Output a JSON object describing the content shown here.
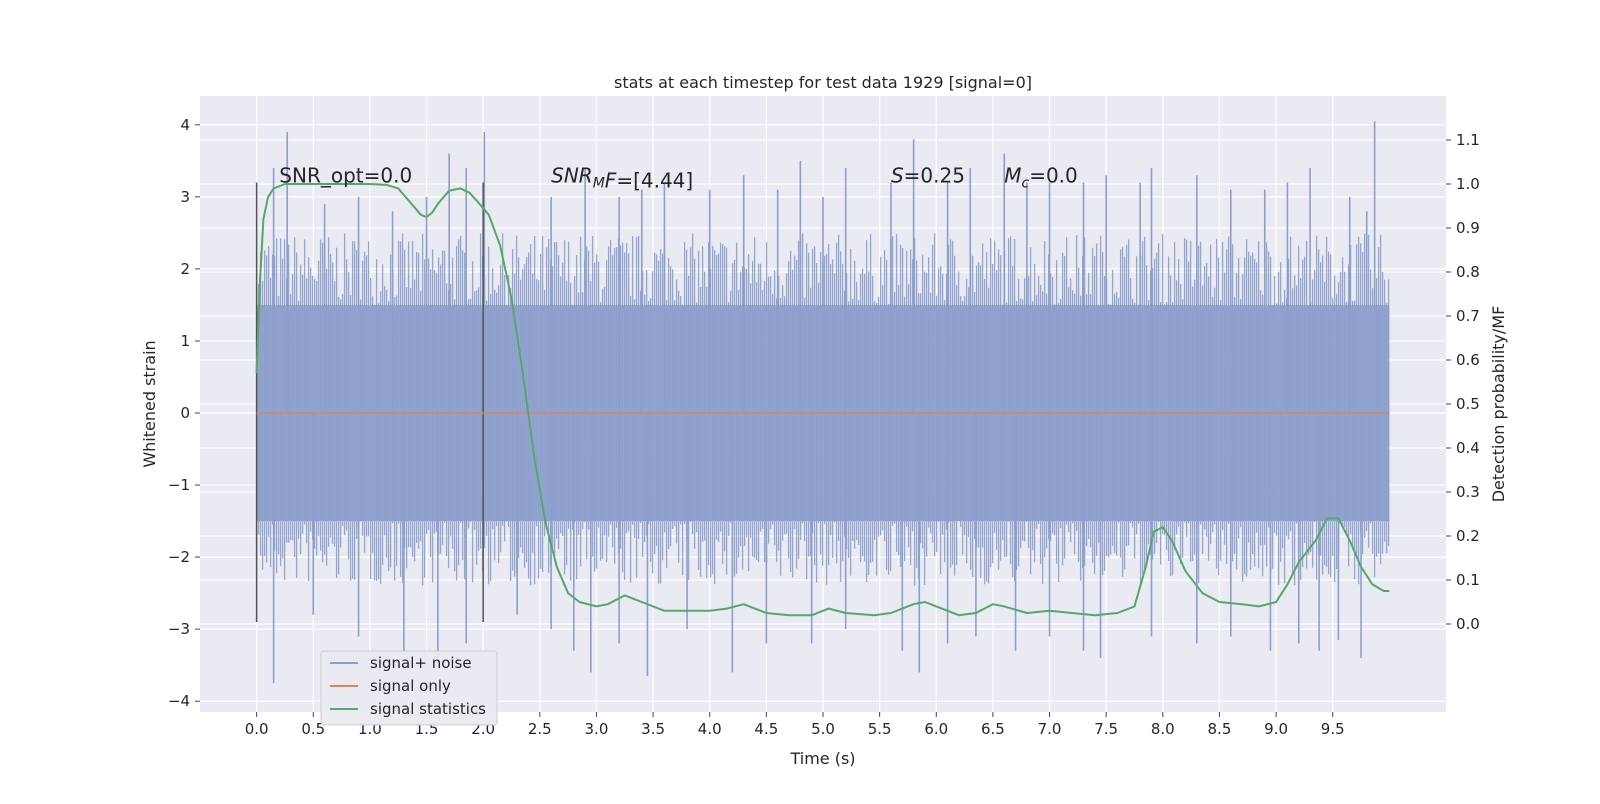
{
  "chart_data": {
    "type": "line",
    "title": "stats at each timestep for test data 1929 [signal=0]",
    "xlabel": "Time (s)",
    "ylabel_left": "Whitened strain",
    "ylabel_right": "Detection probability/MF",
    "xlim": [
      -0.5,
      10.5
    ],
    "ylim_left": [
      -4.15,
      4.4
    ],
    "ylim_right": [
      -0.2,
      1.2
    ],
    "x_ticks": [
      0.0,
      0.5,
      1.0,
      1.5,
      2.0,
      2.5,
      3.0,
      3.5,
      4.0,
      4.5,
      5.0,
      5.5,
      6.0,
      6.5,
      7.0,
      7.5,
      8.0,
      8.5,
      9.0,
      9.5
    ],
    "x_tick_labels": [
      "0.0",
      "0.5",
      "1.0",
      "1.5",
      "2.0",
      "2.5",
      "3.0",
      "3.5",
      "4.0",
      "4.5",
      "5.0",
      "5.5",
      "6.0",
      "6.5",
      "7.0",
      "7.5",
      "8.0",
      "8.5",
      "9.0",
      "9.5"
    ],
    "y_left_ticks": [
      4,
      3,
      2,
      1,
      0,
      -1,
      -2,
      -3,
      -4
    ],
    "y_left_tick_labels": [
      "4",
      "3",
      "2",
      "1",
      "0",
      "−1",
      "−2",
      "−3",
      "−4"
    ],
    "y_right_ticks": [
      1.1,
      1.0,
      0.9,
      0.8,
      0.7,
      0.6,
      0.5,
      0.4,
      0.3,
      0.2,
      0.1,
      0.0
    ],
    "y_right_tick_labels": [
      "1.1",
      "1.0",
      "0.9",
      "0.8",
      "0.7",
      "0.6",
      "0.5",
      "0.4",
      "0.3",
      "0.2",
      "0.1",
      "0.0"
    ],
    "grid": true,
    "legend_position": "lower-left",
    "annotations": [
      {
        "text": "SNR_opt=0.0",
        "x": 0.2,
        "y": 3.2
      },
      {
        "text": "SNR",
        "sub": "M",
        "rest": "F=[4.44]",
        "x": 2.6,
        "y": 3.2
      },
      {
        "text": "S",
        "rest": "=0.25",
        "x": 5.6,
        "y": 3.2
      },
      {
        "text": "M",
        "sub": "c",
        "rest": "=0.0",
        "x": 6.6,
        "y": 3.2
      }
    ],
    "vertical_lines": [
      {
        "x": 0.0,
        "y_range": [
          -2.9,
          3.2
        ]
      },
      {
        "x": 2.0,
        "y_range": [
          -2.9,
          3.2
        ]
      }
    ],
    "series": [
      {
        "name": "signal+ noise",
        "axis": "left",
        "color": "#8c9fcc",
        "x_range": [
          0.0,
          10.0
        ],
        "core_envelope": [
          -1.5,
          1.5
        ],
        "spikes": [
          [
            0.15,
            3.4
          ],
          [
            0.27,
            3.9
          ],
          [
            0.6,
            2.9
          ],
          [
            0.9,
            3.0
          ],
          [
            1.2,
            2.8
          ],
          [
            1.5,
            3.0
          ],
          [
            1.7,
            3.6
          ],
          [
            1.85,
            3.4
          ],
          [
            2.01,
            3.9
          ],
          [
            2.6,
            3.0
          ],
          [
            2.9,
            3.4
          ],
          [
            3.2,
            3.0
          ],
          [
            3.4,
            3.1
          ],
          [
            3.6,
            3.2
          ],
          [
            4.0,
            3.1
          ],
          [
            4.3,
            3.3
          ],
          [
            4.6,
            3.1
          ],
          [
            4.8,
            3.5
          ],
          [
            5.0,
            3.0
          ],
          [
            5.2,
            3.4
          ],
          [
            5.6,
            3.2
          ],
          [
            5.8,
            3.8
          ],
          [
            6.1,
            3.2
          ],
          [
            6.3,
            3.4
          ],
          [
            6.6,
            3.6
          ],
          [
            6.8,
            3.2
          ],
          [
            7.0,
            3.2
          ],
          [
            7.3,
            3.2
          ],
          [
            7.5,
            3.3
          ],
          [
            7.8,
            3.2
          ],
          [
            7.9,
            3.4
          ],
          [
            8.3,
            3.3
          ],
          [
            8.6,
            3.1
          ],
          [
            8.9,
            3.1
          ],
          [
            9.1,
            3.2
          ],
          [
            9.3,
            3.4
          ],
          [
            9.65,
            3.0
          ],
          [
            9.8,
            2.8
          ],
          [
            9.87,
            4.05
          ],
          [
            0.15,
            -3.75
          ],
          [
            0.5,
            -2.8
          ],
          [
            0.9,
            -3.1
          ],
          [
            1.3,
            -3.3
          ],
          [
            1.6,
            -3.4
          ],
          [
            1.85,
            -3.2
          ],
          [
            2.3,
            -2.8
          ],
          [
            2.6,
            -3.0
          ],
          [
            2.8,
            -3.3
          ],
          [
            2.95,
            -3.6
          ],
          [
            3.2,
            -3.2
          ],
          [
            3.45,
            -3.65
          ],
          [
            3.8,
            -3.0
          ],
          [
            4.2,
            -3.6
          ],
          [
            4.5,
            -3.2
          ],
          [
            4.9,
            -3.2
          ],
          [
            5.2,
            -3.0
          ],
          [
            5.7,
            -3.3
          ],
          [
            5.85,
            -3.6
          ],
          [
            6.1,
            -3.2
          ],
          [
            6.35,
            -3.1
          ],
          [
            6.7,
            -3.3
          ],
          [
            7.0,
            -3.1
          ],
          [
            7.3,
            -3.3
          ],
          [
            7.45,
            -3.4
          ],
          [
            7.9,
            -3.1
          ],
          [
            8.3,
            -3.2
          ],
          [
            8.6,
            -3.1
          ],
          [
            8.95,
            -3.3
          ],
          [
            9.2,
            -3.2
          ],
          [
            9.38,
            -3.3
          ],
          [
            9.55,
            -3.15
          ],
          [
            9.75,
            -3.4
          ]
        ]
      },
      {
        "name": "signal only",
        "axis": "left",
        "color": "#dd8452",
        "points": [
          [
            0.0,
            0.0
          ],
          [
            10.0,
            0.0
          ]
        ]
      },
      {
        "name": "signal statistics",
        "axis": "right",
        "color": "#55a868",
        "points": [
          [
            0.0,
            0.57
          ],
          [
            0.03,
            0.78
          ],
          [
            0.06,
            0.92
          ],
          [
            0.1,
            0.97
          ],
          [
            0.15,
            0.99
          ],
          [
            0.25,
            1.0
          ],
          [
            0.5,
            1.0
          ],
          [
            0.8,
            1.0
          ],
          [
            1.0,
            1.0
          ],
          [
            1.15,
            0.998
          ],
          [
            1.25,
            0.99
          ],
          [
            1.35,
            0.96
          ],
          [
            1.45,
            0.93
          ],
          [
            1.5,
            0.925
          ],
          [
            1.55,
            0.935
          ],
          [
            1.6,
            0.955
          ],
          [
            1.7,
            0.985
          ],
          [
            1.8,
            0.99
          ],
          [
            1.88,
            0.98
          ],
          [
            1.95,
            0.96
          ],
          [
            2.05,
            0.93
          ],
          [
            2.15,
            0.86
          ],
          [
            2.25,
            0.74
          ],
          [
            2.35,
            0.57
          ],
          [
            2.45,
            0.38
          ],
          [
            2.55,
            0.23
          ],
          [
            2.65,
            0.13
          ],
          [
            2.75,
            0.07
          ],
          [
            2.85,
            0.05
          ],
          [
            3.0,
            0.04
          ],
          [
            3.1,
            0.045
          ],
          [
            3.25,
            0.065
          ],
          [
            3.4,
            0.05
          ],
          [
            3.6,
            0.03
          ],
          [
            3.8,
            0.03
          ],
          [
            4.0,
            0.03
          ],
          [
            4.15,
            0.035
          ],
          [
            4.3,
            0.045
          ],
          [
            4.5,
            0.025
          ],
          [
            4.7,
            0.02
          ],
          [
            4.9,
            0.02
          ],
          [
            5.05,
            0.035
          ],
          [
            5.2,
            0.025
          ],
          [
            5.45,
            0.02
          ],
          [
            5.6,
            0.025
          ],
          [
            5.8,
            0.045
          ],
          [
            5.9,
            0.05
          ],
          [
            6.0,
            0.04
          ],
          [
            6.2,
            0.02
          ],
          [
            6.35,
            0.025
          ],
          [
            6.5,
            0.045
          ],
          [
            6.6,
            0.04
          ],
          [
            6.8,
            0.025
          ],
          [
            7.0,
            0.03
          ],
          [
            7.2,
            0.025
          ],
          [
            7.4,
            0.02
          ],
          [
            7.6,
            0.025
          ],
          [
            7.75,
            0.04
          ],
          [
            7.85,
            0.13
          ],
          [
            7.92,
            0.21
          ],
          [
            8.0,
            0.22
          ],
          [
            8.08,
            0.19
          ],
          [
            8.2,
            0.12
          ],
          [
            8.35,
            0.07
          ],
          [
            8.5,
            0.05
          ],
          [
            8.7,
            0.045
          ],
          [
            8.85,
            0.04
          ],
          [
            9.0,
            0.05
          ],
          [
            9.1,
            0.09
          ],
          [
            9.2,
            0.14
          ],
          [
            9.35,
            0.19
          ],
          [
            9.45,
            0.24
          ],
          [
            9.55,
            0.24
          ],
          [
            9.65,
            0.19
          ],
          [
            9.75,
            0.13
          ],
          [
            9.85,
            0.09
          ],
          [
            9.95,
            0.075
          ],
          [
            10.0,
            0.075
          ]
        ]
      }
    ]
  }
}
